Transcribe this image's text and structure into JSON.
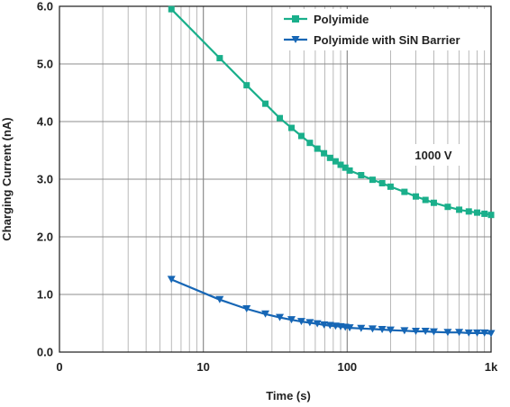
{
  "chart_data": {
    "type": "line",
    "xscale": "log",
    "xlim": [
      1,
      1000
    ],
    "ylim": [
      0,
      6
    ],
    "grid": true,
    "legend_position": "top-right",
    "xlabel": "Time (s)",
    "ylabel": "Charging Current (nA)",
    "xticks": [
      {
        "value": 1,
        "label": "0"
      },
      {
        "value": 10,
        "label": "10"
      },
      {
        "value": 100,
        "label": "100"
      },
      {
        "value": 1000,
        "label": "1k"
      }
    ],
    "yticks": [
      {
        "value": 0,
        "label": "0.0"
      },
      {
        "value": 1,
        "label": "1.0"
      },
      {
        "value": 2,
        "label": "2.0"
      },
      {
        "value": 3,
        "label": "3.0"
      },
      {
        "value": 4,
        "label": "4.0"
      },
      {
        "value": 5,
        "label": "5.0"
      },
      {
        "value": 6,
        "label": "6.0"
      }
    ],
    "annotation": "1000 V",
    "series": [
      {
        "name": "Polyimide",
        "color": "#1aaf8b",
        "marker": "square",
        "x": [
          6,
          13,
          20,
          27,
          34,
          41,
          48,
          55,
          62,
          69,
          76,
          83,
          90,
          97,
          104,
          125,
          150,
          175,
          200,
          250,
          300,
          350,
          400,
          500,
          600,
          700,
          800,
          900,
          1000
        ],
        "y": [
          5.95,
          5.1,
          4.63,
          4.31,
          4.06,
          3.89,
          3.75,
          3.63,
          3.53,
          3.45,
          3.37,
          3.31,
          3.25,
          3.2,
          3.15,
          3.07,
          2.99,
          2.93,
          2.87,
          2.78,
          2.7,
          2.64,
          2.59,
          2.52,
          2.47,
          2.44,
          2.42,
          2.4,
          2.38
        ]
      },
      {
        "name": "Polyimide with SiN Barrier",
        "color": "#1666b5",
        "marker": "triangle-down",
        "x": [
          6,
          13,
          20,
          27,
          34,
          41,
          48,
          55,
          62,
          69,
          76,
          83,
          90,
          97,
          104,
          125,
          150,
          175,
          200,
          250,
          300,
          350,
          400,
          500,
          600,
          700,
          800,
          900,
          1000
        ],
        "y": [
          1.26,
          0.91,
          0.75,
          0.66,
          0.6,
          0.56,
          0.53,
          0.51,
          0.49,
          0.47,
          0.46,
          0.45,
          0.44,
          0.43,
          0.42,
          0.41,
          0.4,
          0.39,
          0.38,
          0.37,
          0.36,
          0.36,
          0.35,
          0.34,
          0.34,
          0.33,
          0.33,
          0.33,
          0.32
        ]
      }
    ]
  }
}
